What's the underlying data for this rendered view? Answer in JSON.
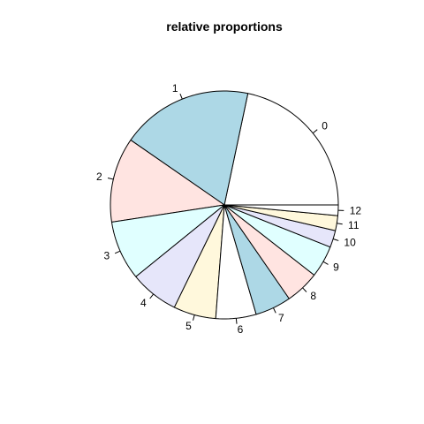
{
  "chart_data": {
    "type": "pie",
    "title": "relative proportions",
    "start_angle_deg": 0,
    "direction": "counterclockwise",
    "slices": [
      {
        "label": "0",
        "value": 0.2169,
        "color": "#FFFFFF"
      },
      {
        "label": "1",
        "value": 0.1867,
        "color": "#ADD8E6"
      },
      {
        "label": "2",
        "value": 0.1205,
        "color": "#FFE4E1"
      },
      {
        "label": "3",
        "value": 0.0843,
        "color": "#E0FFFF"
      },
      {
        "label": "4",
        "value": 0.0693,
        "color": "#E6E6FA"
      },
      {
        "label": "5",
        "value": 0.0602,
        "color": "#FFF8DC"
      },
      {
        "label": "6",
        "value": 0.0572,
        "color": "#FFFFFF"
      },
      {
        "label": "7",
        "value": 0.0512,
        "color": "#ADD8E6"
      },
      {
        "label": "8",
        "value": 0.0482,
        "color": "#FFE4E1"
      },
      {
        "label": "9",
        "value": 0.0452,
        "color": "#E0FFFF"
      },
      {
        "label": "10",
        "value": 0.0241,
        "color": "#E6E6FA"
      },
      {
        "label": "11",
        "value": 0.0211,
        "color": "#FFF8DC"
      },
      {
        "label": "12",
        "value": 0.0151,
        "color": "#FFFFFF"
      }
    ]
  }
}
